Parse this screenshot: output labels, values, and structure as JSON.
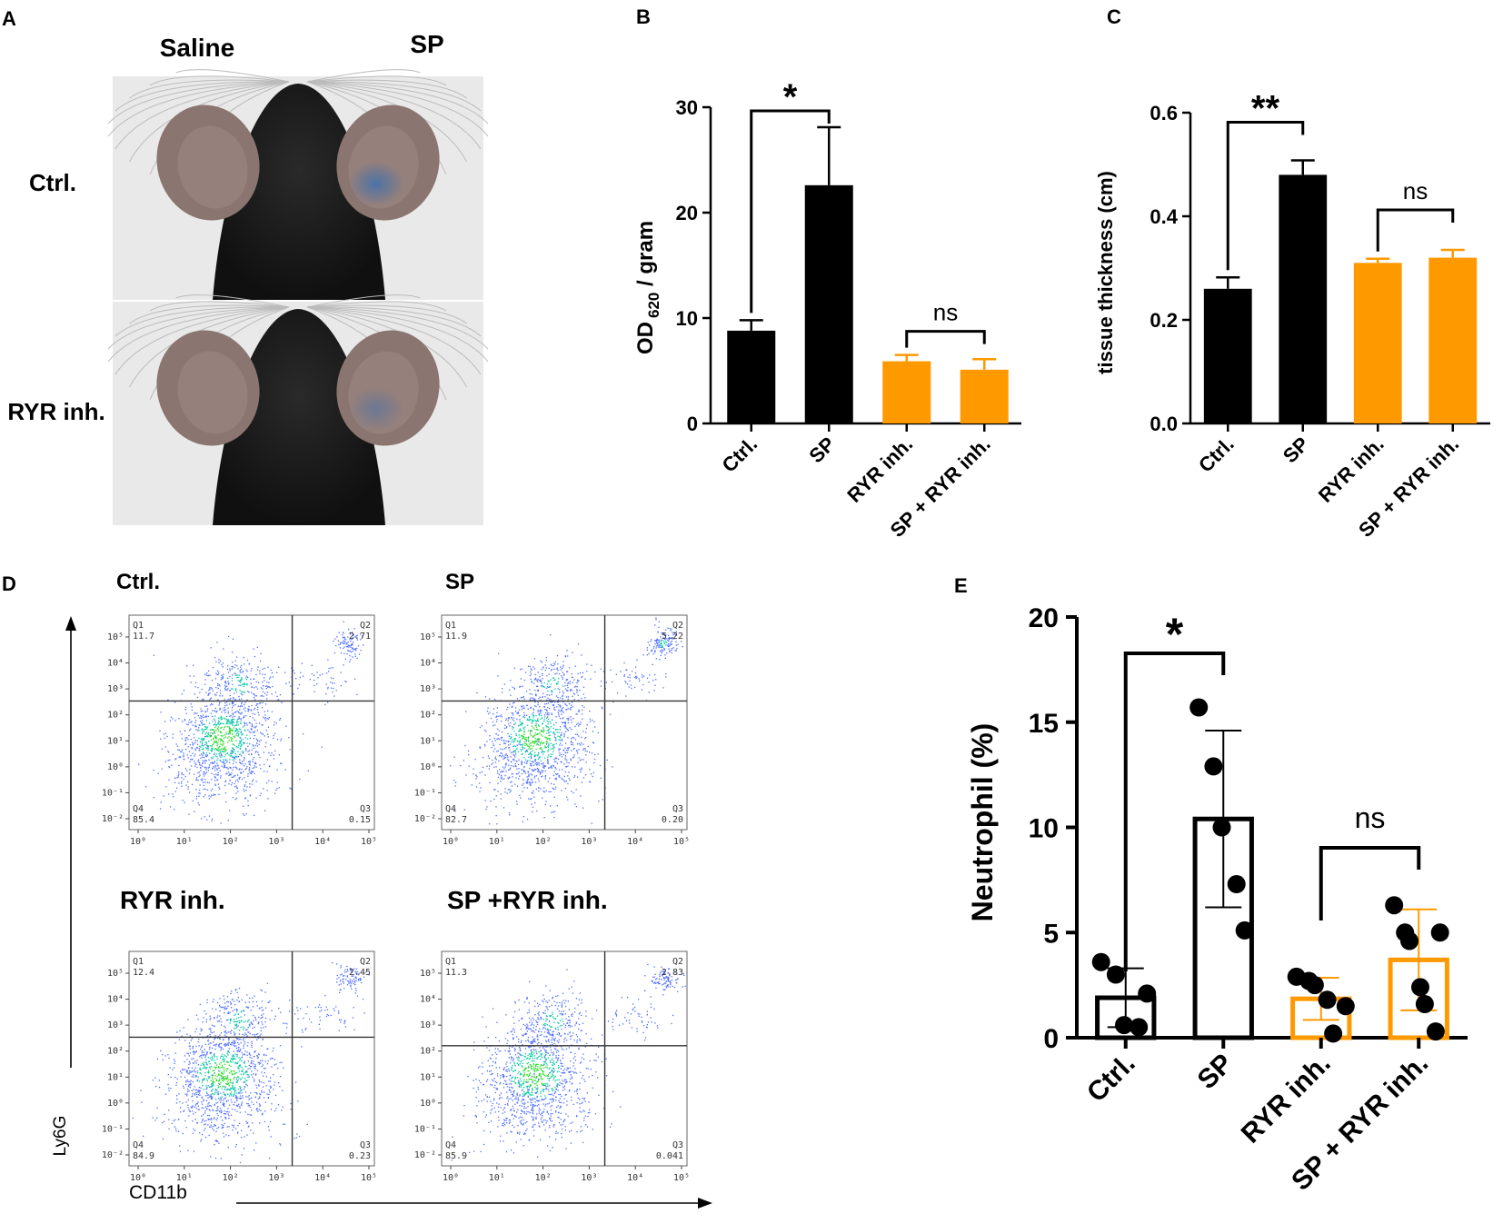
{
  "colors": {
    "black": "#000000",
    "orange": "#FF9900",
    "photo_bg": "#e9e9e9",
    "mouse_fur": "#1b1b1b",
    "ear_skin": "#8a7570",
    "blue_dye": "#4f77a8",
    "density_low": "#4d6cff",
    "density_mid": "#00c9a0",
    "density_high": "#22dd22"
  },
  "panel_a": {
    "letter": "A",
    "col_labels": [
      "Saline",
      "SP"
    ],
    "row_labels": [
      "Ctrl.",
      "RYR inh."
    ],
    "photos": [
      {
        "name": "photo-ctrl",
        "left_blue": false,
        "right_blue": true,
        "right_blue_level": 0.9
      },
      {
        "name": "photo-ryr",
        "left_blue": false,
        "right_blue": true,
        "right_blue_level": 0.5
      }
    ]
  },
  "panel_b": {
    "letter": "B",
    "ylabel_main": "OD",
    "ylabel_sub": "620",
    "ylabel_rest": " / gram",
    "chart_data": {
      "type": "bar",
      "categories": [
        "Ctrl.",
        "SP",
        "RYR inh.",
        "SP + RYR inh."
      ],
      "values": [
        8.8,
        22.6,
        5.9,
        5.1
      ],
      "errors": [
        1.0,
        5.5,
        0.6,
        1.0
      ],
      "colors": [
        "#000000",
        "#000000",
        "#FF9900",
        "#FF9900"
      ],
      "ylim": [
        0,
        30
      ],
      "yticks": [
        "0",
        "10",
        "20",
        "30"
      ],
      "brackets": [
        {
          "from": 0,
          "to": 1,
          "label": "*"
        },
        {
          "from": 2,
          "to": 3,
          "label": "ns"
        }
      ]
    }
  },
  "panel_c": {
    "letter": "C",
    "chart_data": {
      "type": "bar",
      "categories": [
        "Ctrl.",
        "SP",
        "RYR inh.",
        "SP + RYR inh."
      ],
      "values": [
        0.26,
        0.48,
        0.31,
        0.32
      ],
      "errors": [
        0.022,
        0.028,
        0.008,
        0.015
      ],
      "colors": [
        "#000000",
        "#000000",
        "#FF9900",
        "#FF9900"
      ],
      "ylabel": "tissue thickness (cm)",
      "ylim": [
        0,
        0.6
      ],
      "yticks": [
        "0.0",
        "0.2",
        "0.4",
        "0.6"
      ],
      "brackets": [
        {
          "from": 0,
          "to": 1,
          "label": "**"
        },
        {
          "from": 2,
          "to": 3,
          "label": "ns"
        }
      ]
    }
  },
  "panel_d": {
    "letter": "D",
    "y_axis_label": "Ly6G",
    "x_axis_label": "CD11b",
    "y_ticks": [
      "10⁵",
      "10⁴",
      "10³",
      "10²",
      "10¹",
      "10⁰",
      "10⁻¹",
      "10⁻²"
    ],
    "x_ticks": [
      "10⁰",
      "10¹",
      "10²",
      "10³",
      "10⁴",
      "10⁵"
    ],
    "plots": [
      {
        "title": "Ctrl.",
        "q1": "11.7",
        "q2": "2.71",
        "q3": "0.15",
        "q4": "85.4",
        "gate_y": 0.4,
        "q2_density": 0.45
      },
      {
        "title": "SP",
        "q1": "11.9",
        "q2": "5.22",
        "q3": "0.20",
        "q4": "82.7",
        "gate_y": 0.4,
        "q2_density": 0.85
      },
      {
        "title": "RYR inh.",
        "q1": "12.4",
        "q2": "2.45",
        "q3": "0.23",
        "q4": "84.9",
        "gate_y": 0.4,
        "q2_density": 0.4
      },
      {
        "title": "SP +RYR inh.",
        "q1": "11.3",
        "q2": "2.83",
        "q3": "0.041",
        "q4": "85.9",
        "gate_y": 0.44,
        "q2_density": 0.5
      }
    ],
    "quadrant_names": [
      "Q1",
      "Q2",
      "Q3",
      "Q4"
    ]
  },
  "panel_e": {
    "letter": "E",
    "chart_data": {
      "type": "bar",
      "categories": [
        "Ctrl.",
        "SP",
        "RYR inh.",
        "SP + RYR inh."
      ],
      "values": [
        1.9,
        10.4,
        1.85,
        3.7
      ],
      "sd": [
        1.4,
        4.2,
        1.0,
        2.4
      ],
      "points": [
        [
          3.6,
          3.0,
          0.6,
          0.5,
          2.1
        ],
        [
          15.7,
          12.9,
          10.0,
          7.3,
          5.1
        ],
        [
          2.9,
          2.7,
          2.5,
          1.8,
          0.2,
          1.5
        ],
        [
          6.3,
          5.0,
          4.6,
          2.4,
          1.6,
          0.3,
          5.0
        ]
      ],
      "colors": [
        "#000000",
        "#000000",
        "#FF9900",
        "#FF9900"
      ],
      "ylabel": "Neutrophil (%)",
      "ylim": [
        0,
        20
      ],
      "yticks": [
        "0",
        "5",
        "10",
        "15",
        "20"
      ],
      "brackets": [
        {
          "from": 0,
          "to": 1,
          "label": "*"
        },
        {
          "from": 2,
          "to": 3,
          "label": "ns"
        }
      ]
    }
  }
}
